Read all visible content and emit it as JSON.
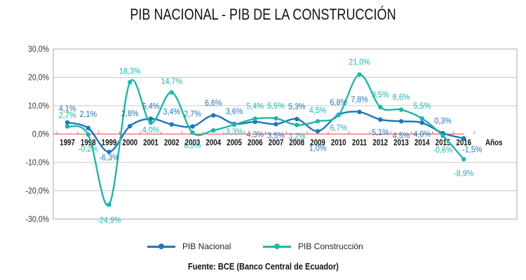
{
  "header": {
    "title": "PIB NACIONAL - PIB DE LA CONSTRUCCIÓN"
  },
  "footer": {
    "source": "Fuente: BCE (Banco Central de Ecuador)"
  },
  "colors": {
    "nacional": "#1f77b8",
    "construccion": "#1fb5ac",
    "zero_line": "#e8636b",
    "grid": "#c8c8c8"
  },
  "chart_data": {
    "type": "line",
    "title": "PIB NACIONAL - PIB DE LA CONSTRUCCIÓN",
    "xlabel": "Años",
    "ylabel": "",
    "ylim": [
      -30,
      30
    ],
    "yticks": [
      30,
      20,
      10,
      0,
      -10,
      -20,
      -30
    ],
    "ytick_labels": [
      "30,0%",
      "20,0%",
      "10,0%",
      "0,0%",
      "-10,0%",
      "-20,0%",
      "-30,0%"
    ],
    "grid": true,
    "legend_position": "bottom",
    "categories": [
      "1997",
      "1998",
      "1999",
      "2000",
      "2001",
      "2002",
      "2003",
      "2004",
      "2005",
      "2006",
      "2007",
      "2008",
      "2009",
      "2010",
      "2011",
      "2012",
      "2013",
      "2014",
      "2015",
      "2016"
    ],
    "series": [
      {
        "name": "PIB Nacional",
        "values": [
          4.1,
          2.1,
          -6.3,
          2.8,
          5.4,
          3.4,
          2.7,
          6.6,
          3.6,
          4.3,
          3.5,
          5.3,
          1.0,
          6.8,
          7.8,
          5.1,
          4.5,
          4.0,
          0.3,
          -1.5
        ],
        "labels": [
          "4,1%",
          "2,1%",
          "-6,3%",
          "2,8%",
          "5,4%",
          "3,4%",
          "2,7%",
          "6,6%",
          "3,6%",
          "4,3%",
          "3,5%",
          "5,3%",
          "1,0%",
          "6,8%",
          "7,8%",
          "5,1%",
          "4,5%",
          "4,0%",
          "0,3%",
          "-1,5%"
        ]
      },
      {
        "name": "PIB Construcción",
        "values": [
          2.7,
          -0.2,
          -24.9,
          18.3,
          4.0,
          14.7,
          0.5,
          1.3,
          3.3,
          5.4,
          5.5,
          3.2,
          4.5,
          6.7,
          21.0,
          9.5,
          8.6,
          5.5,
          -0.6,
          -8.9
        ],
        "labels": [
          "2,7%",
          "-0,2%",
          "-24,9%",
          "18,3%",
          "4,0%",
          "14,7%",
          "0,5%",
          "",
          "3,3%",
          "5,4%",
          "5,5%",
          "3,2%",
          "4,5%",
          "6,7%",
          "21,0%",
          "9,5%",
          "8,6%",
          "5,5%",
          "-0,6%",
          "-8,9%"
        ]
      }
    ]
  }
}
